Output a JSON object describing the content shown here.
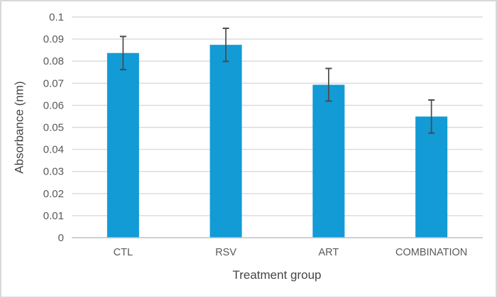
{
  "chart_data": {
    "type": "bar",
    "title": "",
    "categories": [
      "CTL",
      "RSV",
      "ART",
      "COMBINATION"
    ],
    "series": [
      {
        "name": "Absorbance",
        "values": [
          0.0837,
          0.0874,
          0.0693,
          0.0549
        ],
        "error_bars": [
          0.0075,
          0.0075,
          0.0074,
          0.0075
        ]
      }
    ],
    "xlabel": "Treatment group",
    "ylabel": "Absorbance (nm)",
    "ylim": [
      0,
      0.1
    ],
    "ytick_step": 0.01,
    "ytick_labels": [
      "0",
      "0.01",
      "0.02",
      "0.03",
      "0.04",
      "0.05",
      "0.06",
      "0.07",
      "0.08",
      "0.09",
      "0.1"
    ],
    "grid": true,
    "legend": false
  },
  "colors": {
    "bar_fill": "#129BD5",
    "error_bar": "#4a4a4a",
    "gridline": "#dadada",
    "axis_line": "#bfbfbf",
    "tick_label": "#595959",
    "axis_title": "#454545",
    "background": "#ffffff",
    "frame_border": "#d8d8d8"
  }
}
